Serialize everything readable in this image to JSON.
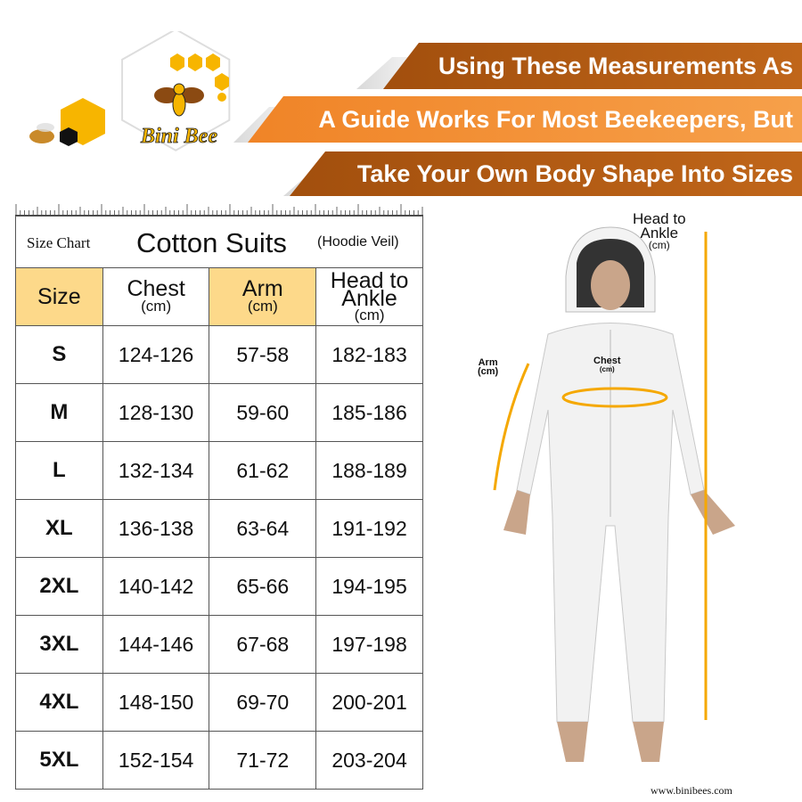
{
  "logo": {
    "brand": "Bini Bee",
    "registered": "®",
    "colors": {
      "honey": "#f7b500",
      "brown": "#8b4a12"
    }
  },
  "banners": [
    "Using These Measurements As",
    "A Guide Works For Most Beekeepers, But",
    "Take Your Own Body Shape Into Sizes"
  ],
  "colors": {
    "banner_dark": "#a24f0d",
    "banner_orange": "#f08427",
    "header_highlight": "#fdd98a",
    "measure_line": "#f5a800"
  },
  "table": {
    "title_left": "Size Chart",
    "title_main": "Cotton Suits",
    "title_note": "(Hoodie Veil)",
    "headers": [
      {
        "label": "Size",
        "unit": ""
      },
      {
        "label": "Chest",
        "unit": "(cm)"
      },
      {
        "label": "Arm",
        "unit": "(cm)"
      },
      {
        "label": "Head to Ankle",
        "unit": "(cm)"
      }
    ],
    "rows": [
      [
        "S",
        "124-126",
        "57-58",
        "182-183"
      ],
      [
        "M",
        "128-130",
        "59-60",
        "185-186"
      ],
      [
        "L",
        "132-134",
        "61-62",
        "188-189"
      ],
      [
        "XL",
        "136-138",
        "63-64",
        "191-192"
      ],
      [
        "2XL",
        "140-142",
        "65-66",
        "194-195"
      ],
      [
        "3XL",
        "144-146",
        "67-68",
        "197-198"
      ],
      [
        "4XL",
        "148-150",
        "69-70",
        "200-201"
      ],
      [
        "5XL",
        "152-154",
        "71-72",
        "203-204"
      ]
    ]
  },
  "figure": {
    "head_label": "Head to",
    "ankle_label": "Ankle",
    "head_unit": "(cm)",
    "arm_label": "Arm",
    "arm_unit": "(cm)",
    "chest_label": "Chest",
    "chest_unit": "(cm)"
  },
  "website": "www.binibees.com"
}
